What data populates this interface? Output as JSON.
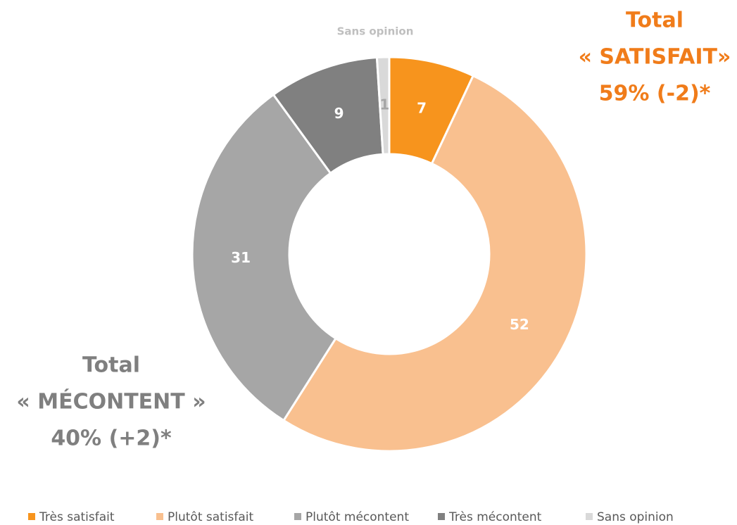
{
  "chart_data": {
    "type": "donut",
    "categories": [
      "Très satisfait",
      "Plutôt satisfait",
      "Plutôt mécontent",
      "Très mécontent",
      "Sans opinion"
    ],
    "values": [
      7,
      52,
      31,
      9,
      1
    ],
    "colors": [
      "#F7941D",
      "#F9C08F",
      "#A6A6A6",
      "#808080",
      "#D9D9D9"
    ],
    "label_colors": [
      "#FFFFFF",
      "#FFFFFF",
      "#FFFFFF",
      "#FFFFFF",
      "#A6A6A6"
    ],
    "annotations": [
      {
        "lines": [
          "Total",
          "« SATISFAIT»",
          "59% (-2)*"
        ],
        "color": "#F07C1A"
      },
      {
        "lines": [
          "Total",
          "« MÉCONTENT »",
          "40% (+2)*"
        ],
        "color": "#7F7F7F"
      }
    ],
    "legend": "bottom"
  }
}
